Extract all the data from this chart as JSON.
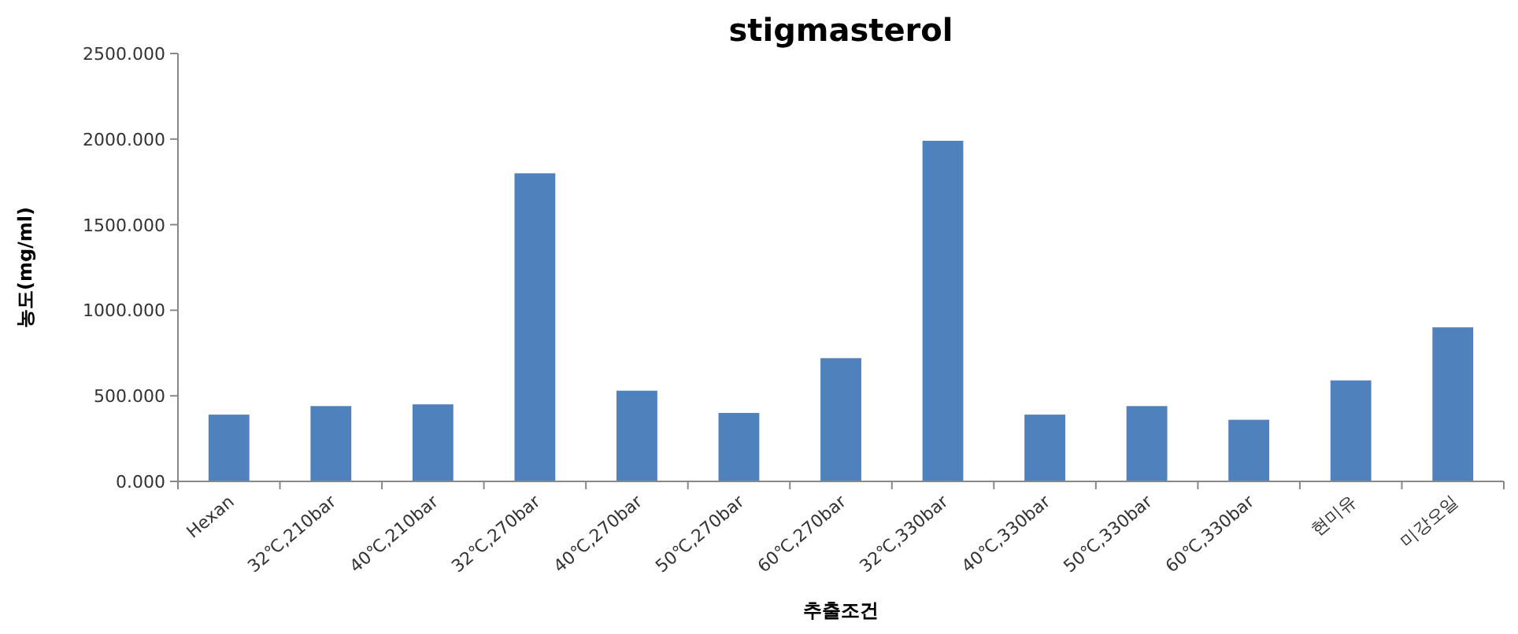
{
  "chart_data": {
    "type": "bar",
    "title": "stigmasterol",
    "xlabel": "추출조건",
    "ylabel": "농도(mg/ml)",
    "categories": [
      "Hexan",
      "32℃,210bar",
      "40℃,210bar",
      "32℃,270bar",
      "40℃,270bar",
      "50℃,270bar",
      "60℃,270bar",
      "32℃,330bar",
      "40℃,330bar",
      "50℃,330bar",
      "60℃,330bar",
      "현미유",
      "미강오일"
    ],
    "values": [
      390,
      440,
      450,
      1800,
      530,
      400,
      720,
      1990,
      390,
      440,
      360,
      590,
      900
    ],
    "color": "#4f81bd",
    "ylim": [
      0,
      2500
    ],
    "yticks": [
      {
        "value": 0,
        "label": "0.000"
      },
      {
        "value": 500,
        "label": "500.000"
      },
      {
        "value": 1000,
        "label": "1000.000"
      },
      {
        "value": 1500,
        "label": "1500.000"
      },
      {
        "value": 2000,
        "label": "2000.000"
      },
      {
        "value": 2500,
        "label": "2500.000"
      }
    ]
  }
}
